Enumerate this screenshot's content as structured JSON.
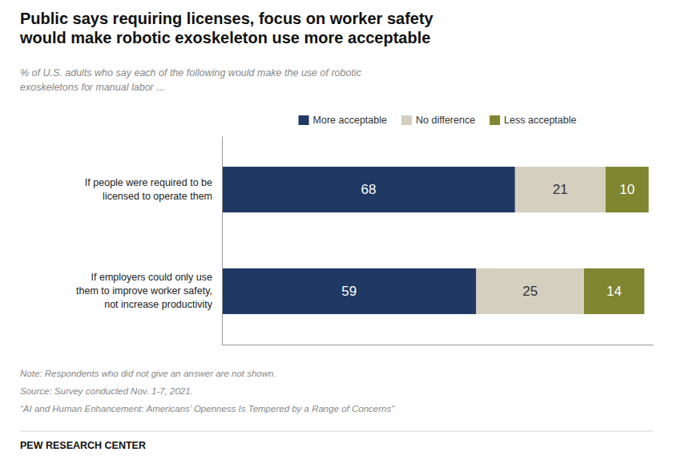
{
  "chart_data": {
    "type": "bar",
    "orientation": "horizontal",
    "stacked": true,
    "data_labels": true,
    "tick_labels": "y",
    "legend": "top",
    "title": "Public says requiring licenses, focus on worker safety\nwould make robotic exoskeleton use more acceptable",
    "subtitle": "% of U.S. adults who say each of the following would make the use of robotic\nexoskeletons for manual labor ...",
    "categories": [
      "If people were required to be\nlicensed to operate them",
      "If employers could only use\nthem to improve worker safety,\nnot increase productivity"
    ],
    "series": [
      {
        "name": "More acceptable",
        "color": "#1F3864",
        "values": [
          68,
          59
        ]
      },
      {
        "name": "No difference",
        "color": "#D5CFC0",
        "values": [
          21,
          25
        ]
      },
      {
        "name": "Less acceptable",
        "color": "#808530",
        "values": [
          10,
          14
        ]
      }
    ],
    "xlim": [
      0,
      100
    ],
    "notes": [
      "Note: Respondents who did not give an answer are not shown.",
      "Source: Survey conducted Nov. 1-7, 2021.",
      "“AI and Human Enhancement: Americans’ Openness Is Tempered by a Range of Concerns”"
    ],
    "footer": "PEW RESEARCH CENTER"
  }
}
